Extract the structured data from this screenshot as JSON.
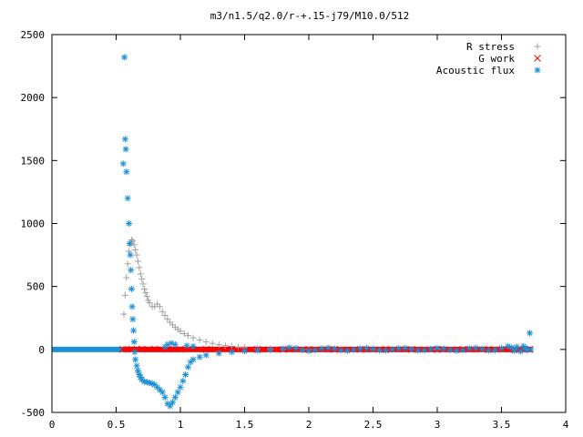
{
  "chart_data": {
    "type": "scatter",
    "title": "m3/n1.5/q2.0/r-+.15-j79/M10.0/512",
    "xlabel": "",
    "ylabel": "",
    "xlim": [
      0,
      4
    ],
    "ylim": [
      -500,
      2500
    ],
    "xticks": [
      0,
      0.5,
      1,
      1.5,
      2,
      2.5,
      3,
      3.5,
      4
    ],
    "xtick_labels": [
      "0",
      "0.5",
      "1",
      "1.5",
      "2",
      "2.5",
      "3",
      "3.5",
      "4"
    ],
    "yticks": [
      -500,
      0,
      500,
      1000,
      1500,
      2000,
      2500
    ],
    "ytick_labels": [
      "-500",
      "0",
      "500",
      "1000",
      "1500",
      "2000",
      "2500"
    ],
    "grid": false,
    "legend_position": "top-right",
    "series": [
      {
        "name": "R stress",
        "marker": "plus",
        "color": "#a0a0a0",
        "points": [
          [
            0.56,
            280
          ],
          [
            0.57,
            430
          ],
          [
            0.58,
            570
          ],
          [
            0.59,
            680
          ],
          [
            0.6,
            780
          ],
          [
            0.61,
            840
          ],
          [
            0.62,
            870
          ],
          [
            0.63,
            860
          ],
          [
            0.64,
            830
          ],
          [
            0.65,
            790
          ],
          [
            0.66,
            750
          ],
          [
            0.67,
            700
          ],
          [
            0.68,
            650
          ],
          [
            0.69,
            600
          ],
          [
            0.7,
            560
          ],
          [
            0.71,
            520
          ],
          [
            0.72,
            480
          ],
          [
            0.73,
            450
          ],
          [
            0.74,
            420
          ],
          [
            0.75,
            390
          ],
          [
            0.76,
            370
          ],
          [
            0.78,
            340
          ],
          [
            0.8,
            340
          ],
          [
            0.82,
            360
          ],
          [
            0.84,
            340
          ],
          [
            0.86,
            300
          ],
          [
            0.88,
            270
          ],
          [
            0.9,
            240
          ],
          [
            0.92,
            215
          ],
          [
            0.94,
            195
          ],
          [
            0.96,
            175
          ],
          [
            0.98,
            160
          ],
          [
            1.0,
            145
          ],
          [
            1.03,
            125
          ],
          [
            1.06,
            110
          ],
          [
            1.1,
            92
          ],
          [
            1.15,
            75
          ],
          [
            1.2,
            60
          ],
          [
            1.25,
            48
          ],
          [
            1.3,
            38
          ],
          [
            1.35,
            30
          ],
          [
            1.4,
            24
          ],
          [
            1.45,
            18
          ],
          [
            1.5,
            14
          ],
          [
            1.6,
            8
          ],
          [
            1.7,
            5
          ],
          [
            1.8,
            3
          ],
          [
            2.0,
            2
          ],
          [
            2.5,
            1
          ],
          [
            3.0,
            0
          ],
          [
            3.7,
            0
          ]
        ]
      },
      {
        "name": "G work",
        "marker": "cross",
        "color": "#ff0000",
        "points": [
          [
            0.55,
            0
          ],
          [
            0.62,
            2
          ],
          [
            0.7,
            3
          ],
          [
            0.8,
            3
          ],
          [
            0.9,
            2
          ],
          [
            1.0,
            2
          ],
          [
            1.2,
            1
          ],
          [
            1.4,
            0
          ],
          [
            1.6,
            0
          ],
          [
            1.8,
            0
          ],
          [
            2.0,
            0
          ],
          [
            2.2,
            0
          ],
          [
            2.4,
            0
          ],
          [
            2.6,
            0
          ],
          [
            2.8,
            0
          ],
          [
            3.0,
            0
          ],
          [
            3.2,
            0
          ],
          [
            3.4,
            0
          ],
          [
            3.6,
            0
          ],
          [
            3.72,
            0
          ]
        ]
      },
      {
        "name": "Acoustic flux",
        "marker": "star",
        "color": "#1a8fd6",
        "points": [
          [
            0.555,
            1475
          ],
          [
            0.565,
            2320
          ],
          [
            0.57,
            1670
          ],
          [
            0.575,
            1590
          ],
          [
            0.58,
            1410
          ],
          [
            0.59,
            1200
          ],
          [
            0.6,
            1000
          ],
          [
            0.605,
            840
          ],
          [
            0.61,
            750
          ],
          [
            0.615,
            630
          ],
          [
            0.62,
            480
          ],
          [
            0.625,
            340
          ],
          [
            0.63,
            240
          ],
          [
            0.635,
            150
          ],
          [
            0.64,
            60
          ],
          [
            0.645,
            -20
          ],
          [
            0.65,
            -80
          ],
          [
            0.66,
            -130
          ],
          [
            0.67,
            -170
          ],
          [
            0.68,
            -200
          ],
          [
            0.69,
            -220
          ],
          [
            0.7,
            -240
          ],
          [
            0.72,
            -255
          ],
          [
            0.74,
            -260
          ],
          [
            0.76,
            -265
          ],
          [
            0.78,
            -270
          ],
          [
            0.8,
            -280
          ],
          [
            0.82,
            -300
          ],
          [
            0.84,
            -320
          ],
          [
            0.86,
            -340
          ],
          [
            0.88,
            -380
          ],
          [
            0.9,
            -430
          ],
          [
            0.92,
            -450
          ],
          [
            0.94,
            -420
          ],
          [
            0.96,
            -380
          ],
          [
            0.98,
            -340
          ],
          [
            1.0,
            -300
          ],
          [
            1.02,
            -250
          ],
          [
            1.04,
            -200
          ],
          [
            1.06,
            -140
          ],
          [
            1.08,
            -100
          ],
          [
            1.1,
            -80
          ],
          [
            1.15,
            -60
          ],
          [
            1.2,
            -45
          ],
          [
            1.3,
            -30
          ],
          [
            1.4,
            -20
          ],
          [
            1.5,
            -12
          ],
          [
            1.6,
            -8
          ],
          [
            1.7,
            -3
          ],
          [
            0.88,
            20
          ],
          [
            0.9,
            40
          ],
          [
            0.93,
            50
          ],
          [
            0.96,
            40
          ],
          [
            1.05,
            30
          ],
          [
            1.1,
            25
          ],
          [
            1.8,
            5
          ],
          [
            1.85,
            15
          ],
          [
            1.9,
            10
          ],
          [
            1.95,
            -5
          ],
          [
            2.0,
            -12
          ],
          [
            2.05,
            -5
          ],
          [
            2.1,
            8
          ],
          [
            2.15,
            12
          ],
          [
            2.2,
            6
          ],
          [
            2.25,
            -6
          ],
          [
            2.3,
            -10
          ],
          [
            2.35,
            -2
          ],
          [
            2.4,
            6
          ],
          [
            2.45,
            10
          ],
          [
            2.5,
            4
          ],
          [
            2.55,
            -6
          ],
          [
            2.6,
            -8
          ],
          [
            2.65,
            0
          ],
          [
            2.7,
            8
          ],
          [
            2.75,
            10
          ],
          [
            2.8,
            2
          ],
          [
            2.85,
            -8
          ],
          [
            2.9,
            -6
          ],
          [
            2.95,
            4
          ],
          [
            3.0,
            10
          ],
          [
            3.05,
            6
          ],
          [
            3.1,
            -4
          ],
          [
            3.15,
            -10
          ],
          [
            3.2,
            -4
          ],
          [
            3.25,
            8
          ],
          [
            3.3,
            12
          ],
          [
            3.35,
            4
          ],
          [
            3.4,
            -8
          ],
          [
            3.45,
            -6
          ],
          [
            3.5,
            10
          ],
          [
            3.55,
            25
          ],
          [
            3.58,
            15
          ],
          [
            3.6,
            -10
          ],
          [
            3.62,
            20
          ],
          [
            3.65,
            -15
          ],
          [
            3.67,
            25
          ],
          [
            3.69,
            10
          ],
          [
            3.7,
            -5
          ],
          [
            3.72,
            130
          ],
          [
            3.73,
            0
          ]
        ]
      }
    ]
  }
}
